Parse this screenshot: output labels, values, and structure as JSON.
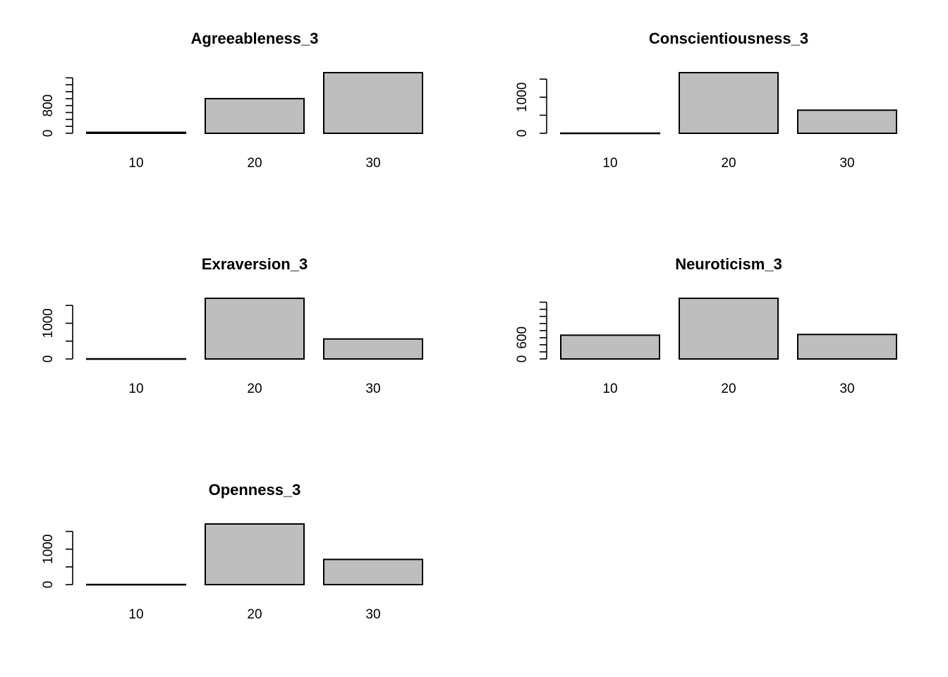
{
  "chart_data": [
    {
      "type": "bar",
      "title": "Agreeableness_3",
      "categories": [
        "10",
        "20",
        "30"
      ],
      "values": [
        28,
        1000,
        1750
      ],
      "ylim": [
        0,
        1750
      ],
      "yticks": [
        0,
        200,
        400,
        600,
        800,
        1000,
        1200,
        1400,
        1600
      ],
      "ytick_labels": [
        {
          "value": 0,
          "label": "0"
        },
        {
          "value": 800,
          "label": "800"
        }
      ]
    },
    {
      "type": "bar",
      "title": "Conscientiousness_3",
      "categories": [
        "10",
        "20",
        "30"
      ],
      "values": [
        4,
        1680,
        640
      ],
      "ylim": [
        0,
        1680
      ],
      "yticks": [
        0,
        500,
        1000,
        1500
      ],
      "ytick_labels": [
        {
          "value": 0,
          "label": "0"
        },
        {
          "value": 1000,
          "label": "1000"
        }
      ]
    },
    {
      "type": "bar",
      "title": "Exraversion_3",
      "categories": [
        "10",
        "20",
        "30"
      ],
      "values": [
        4,
        1700,
        560
      ],
      "ylim": [
        0,
        1700
      ],
      "yticks": [
        0,
        500,
        1000,
        1500
      ],
      "ytick_labels": [
        {
          "value": 0,
          "label": "0"
        },
        {
          "value": 1000,
          "label": "1000"
        }
      ]
    },
    {
      "type": "bar",
      "title": "Neuroticism_3",
      "categories": [
        "10",
        "20",
        "30"
      ],
      "values": [
        670,
        1710,
        690
      ],
      "ylim": [
        0,
        1710
      ],
      "yticks": [
        0,
        200,
        400,
        600,
        800,
        1000,
        1200,
        1400,
        1600
      ],
      "ytick_labels": [
        {
          "value": 0,
          "label": "0"
        },
        {
          "value": 600,
          "label": "600"
        }
      ]
    },
    {
      "type": "bar",
      "title": "Openness_3",
      "categories": [
        "10",
        "20",
        "30"
      ],
      "values": [
        4,
        1710,
        710
      ],
      "ylim": [
        0,
        1710
      ],
      "yticks": [
        0,
        500,
        1000,
        1500
      ],
      "ytick_labels": [
        {
          "value": 0,
          "label": "0"
        },
        {
          "value": 1000,
          "label": "1000"
        }
      ]
    }
  ]
}
